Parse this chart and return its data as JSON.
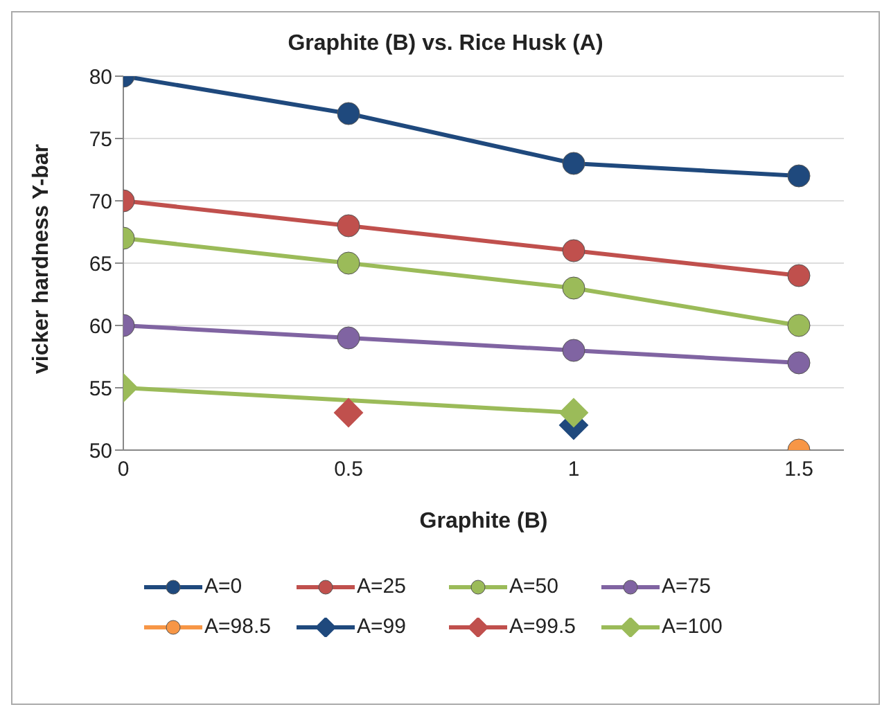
{
  "chart_data": {
    "type": "line",
    "title": "Graphite (B) vs. Rice Husk (A)",
    "xlabel": "Graphite (B)",
    "ylabel": "vicker hardness Y-bar",
    "x": [
      0,
      0.5,
      1,
      1.5
    ],
    "xlim": [
      0,
      1.6
    ],
    "xticks": [
      0,
      0.5,
      1,
      1.5
    ],
    "ylim": [
      50,
      80
    ],
    "yticks": [
      50,
      55,
      60,
      65,
      70,
      75,
      80
    ],
    "grid": "y",
    "legend": "bottom",
    "series": [
      {
        "name": "A=0",
        "color": "#1f497d",
        "marker": "circle",
        "values": [
          80,
          77,
          73,
          72
        ]
      },
      {
        "name": "A=25",
        "color": "#c0504d",
        "marker": "circle",
        "values": [
          70,
          68,
          66,
          64
        ]
      },
      {
        "name": "A=50",
        "color": "#9bbb59",
        "marker": "circle",
        "values": [
          67,
          65,
          63,
          60
        ]
      },
      {
        "name": "A=75",
        "color": "#8064a2",
        "marker": "circle",
        "values": [
          60,
          59,
          58,
          57
        ]
      },
      {
        "name": "A=98.5",
        "color": "#f79646",
        "marker": "circle",
        "x": [
          1.5
        ],
        "values": [
          50
        ]
      },
      {
        "name": "A=99",
        "color": "#1f497d",
        "marker": "diamond",
        "x": [
          1
        ],
        "values": [
          52
        ]
      },
      {
        "name": "A=99.5",
        "color": "#c0504d",
        "marker": "diamond",
        "x": [
          0.5
        ],
        "values": [
          53
        ]
      },
      {
        "name": "A=100",
        "color": "#9bbb59",
        "marker": "diamond",
        "x": [
          0,
          1
        ],
        "values": [
          55,
          53
        ]
      }
    ]
  }
}
